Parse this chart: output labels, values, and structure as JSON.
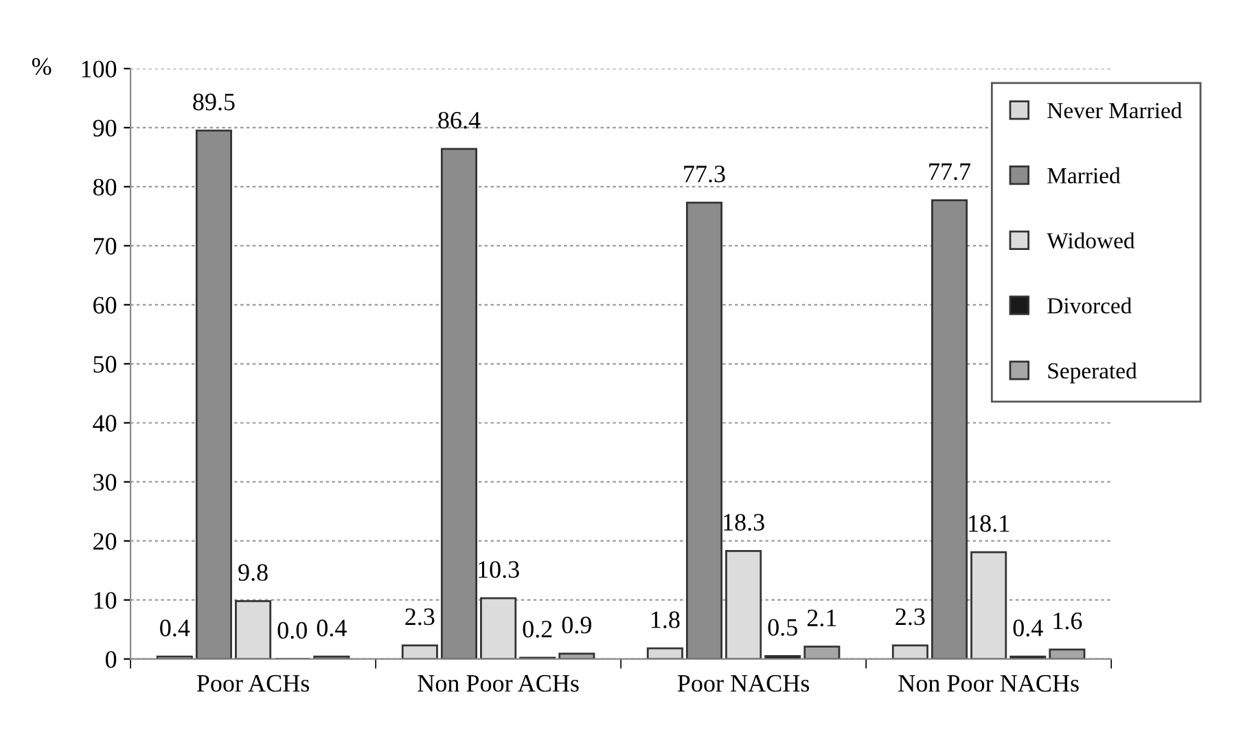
{
  "chart_data": {
    "type": "bar",
    "ylabel": "%",
    "categories": [
      "Poor ACHs",
      "Non Poor ACHs",
      "Poor NACHs",
      "Non Poor NACHs"
    ],
    "series": [
      {
        "name": "Never Married",
        "color": "#d9d9d9",
        "values": [
          0.4,
          2.3,
          1.8,
          2.3
        ]
      },
      {
        "name": "Married",
        "color": "#8c8c8c",
        "values": [
          89.5,
          86.4,
          77.3,
          77.7
        ]
      },
      {
        "name": "Widowed",
        "color": "#dcdcdc",
        "values": [
          9.8,
          10.3,
          18.3,
          18.1
        ]
      },
      {
        "name": "Divorced",
        "color": "#1a1a1a",
        "values": [
          0.0,
          0.2,
          0.5,
          0.4
        ],
        "value_labels": [
          "0.0",
          "0.2",
          "0.5",
          "0.4"
        ]
      },
      {
        "name": "Seperated",
        "color": "#a6a6a6",
        "values": [
          0.4,
          0.9,
          2.1,
          1.6
        ]
      }
    ],
    "ylim": [
      0,
      100
    ],
    "yticks": [
      0,
      10,
      20,
      30,
      40,
      50,
      60,
      70,
      80,
      90,
      100
    ],
    "grid": "y",
    "legend": "top right",
    "data_labels": true
  }
}
